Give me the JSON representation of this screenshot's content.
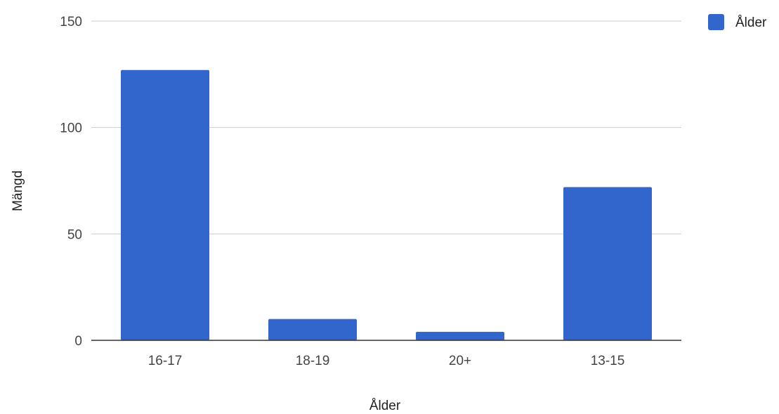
{
  "chart_data": {
    "type": "bar",
    "categories": [
      "16-17",
      "18-19",
      "20+",
      "13-15"
    ],
    "series": [
      {
        "name": "Ålder",
        "values": [
          127,
          10,
          4,
          72
        ]
      }
    ],
    "xlabel": "Ålder",
    "ylabel": "Mängd",
    "ylim": [
      0,
      150
    ],
    "yticks": [
      0,
      50,
      100,
      150
    ],
    "grid": true,
    "legend_position": "top-right",
    "colors": {
      "bar": "#3366cc",
      "grid": "#cccccc",
      "axis": "#333333"
    }
  }
}
